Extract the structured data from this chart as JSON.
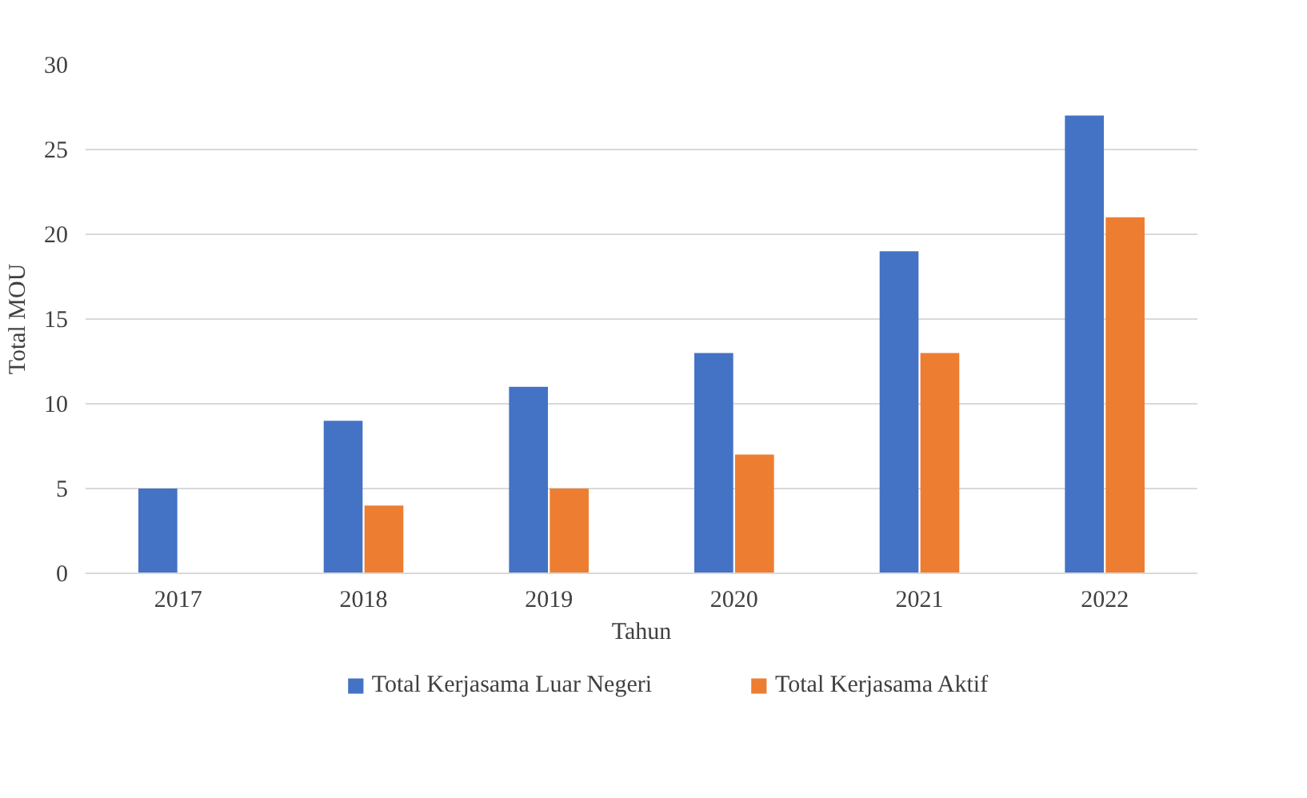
{
  "chart_data": {
    "type": "bar",
    "xlabel": "Tahun",
    "ylabel": "Total MOU",
    "categories": [
      "2017",
      "2018",
      "2019",
      "2020",
      "2021",
      "2022"
    ],
    "series": [
      {
        "name": "Total Kerjasama Luar Negeri",
        "color": "#4472c4",
        "values": [
          5,
          9,
          11,
          13,
          19,
          27
        ]
      },
      {
        "name": "Total Kerjasama Aktif",
        "color": "#ed7d31",
        "values": [
          null,
          4,
          5,
          7,
          13,
          21
        ]
      }
    ],
    "ylim": [
      0,
      30
    ],
    "yticks": [
      0,
      5,
      10,
      15,
      20,
      25,
      30
    ],
    "grid": "y",
    "legend": "bottom"
  }
}
